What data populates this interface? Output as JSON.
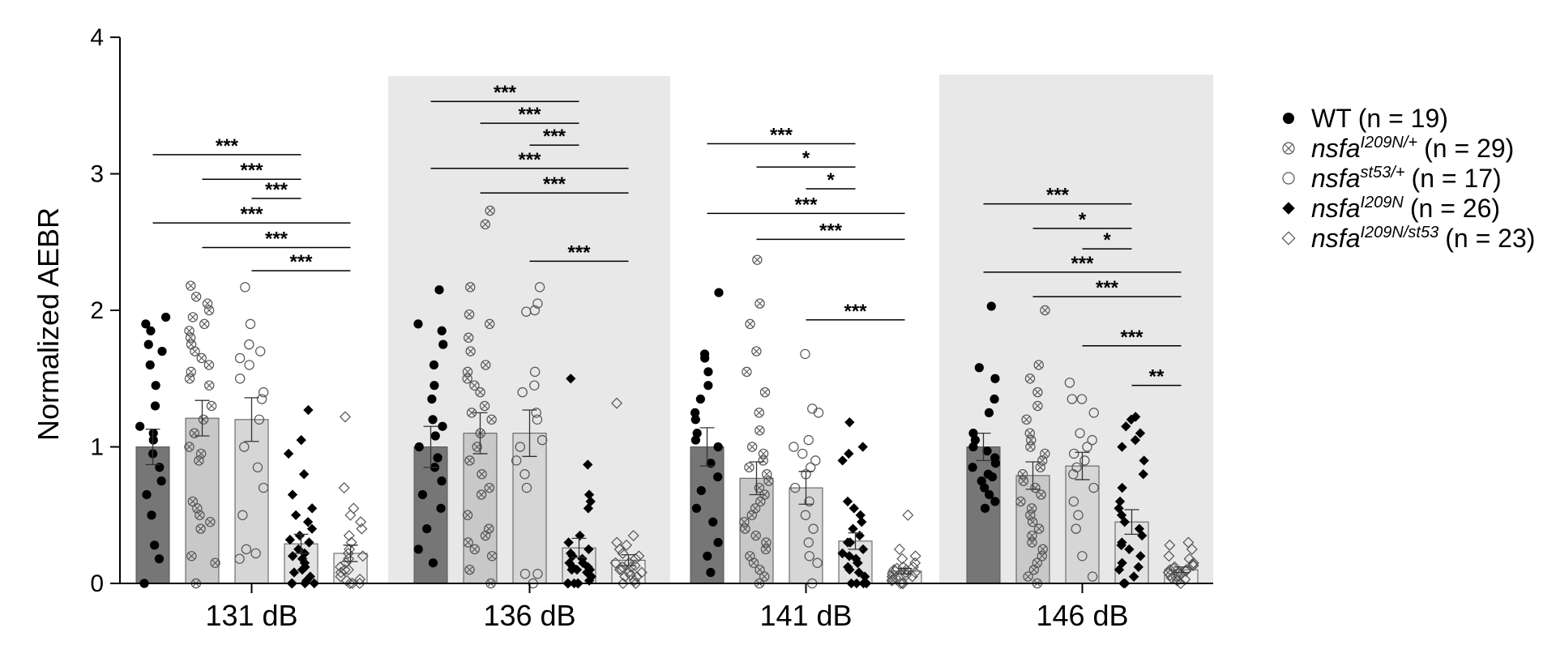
{
  "chart_data": {
    "type": "bar",
    "title": "",
    "ylabel": "Normalized AEBR",
    "xlabel": "",
    "ylim": [
      0,
      4
    ],
    "yticks": [
      0,
      1,
      2,
      3,
      4
    ],
    "categories": [
      "131 dB",
      "136 dB",
      "141 dB",
      "146 dB"
    ],
    "shaded_groups": [
      "136 dB",
      "146 dB"
    ],
    "series": [
      {
        "key": "wt",
        "name": "WT",
        "n_label": "(n = 19)",
        "marker": "circle-filled",
        "bar_color": "#767676",
        "values": [
          1.0,
          1.0,
          1.0,
          1.0
        ],
        "sem": [
          0.13,
          0.15,
          0.14,
          0.1
        ],
        "points": [
          [
            0.0,
            0.18,
            0.28,
            0.5,
            0.65,
            0.75,
            0.85,
            0.95,
            1.05,
            1.1,
            1.15,
            1.3,
            1.45,
            1.6,
            1.7,
            1.75,
            1.85,
            1.9,
            1.95
          ],
          [
            0.15,
            0.25,
            0.4,
            0.55,
            0.65,
            0.75,
            0.85,
            0.92,
            1.0,
            1.08,
            1.15,
            1.2,
            1.35,
            1.45,
            1.6,
            1.75,
            1.85,
            1.9,
            2.15
          ],
          [
            0.08,
            0.2,
            0.3,
            0.45,
            0.55,
            0.68,
            0.78,
            0.88,
            1.0,
            1.05,
            1.1,
            1.2,
            1.25,
            1.35,
            1.45,
            1.55,
            1.65,
            1.68,
            2.13
          ],
          [
            0.55,
            0.6,
            0.65,
            0.7,
            0.75,
            0.78,
            0.8,
            0.85,
            0.88,
            0.92,
            0.97,
            1.0,
            1.05,
            1.1,
            1.25,
            1.35,
            1.5,
            1.58,
            2.03
          ]
        ]
      },
      {
        "key": "het",
        "name": "nsfa",
        "sup": "I209N/+",
        "n_label": "(n = 29)",
        "marker": "circle-cross",
        "bar_color": "#c8c8c8",
        "values": [
          1.21,
          1.1,
          0.77,
          0.79
        ],
        "sem": [
          0.13,
          0.15,
          0.12,
          0.1
        ],
        "points": [
          [
            0.0,
            0.15,
            0.2,
            0.4,
            0.45,
            0.5,
            0.55,
            0.6,
            0.9,
            0.95,
            1.0,
            1.1,
            1.2,
            1.3,
            1.45,
            1.5,
            1.55,
            1.6,
            1.65,
            1.7,
            1.75,
            1.8,
            1.85,
            1.9,
            1.95,
            2.0,
            2.05,
            2.1,
            2.18
          ],
          [
            0.0,
            0.1,
            0.2,
            0.25,
            0.3,
            0.35,
            0.4,
            0.5,
            0.65,
            0.7,
            0.8,
            0.9,
            1.0,
            1.1,
            1.2,
            1.3,
            1.4,
            1.45,
            1.5,
            1.55,
            1.6,
            1.7,
            1.8,
            1.9,
            1.97,
            2.17,
            2.63,
            2.73,
            1.25
          ],
          [
            0.0,
            0.05,
            0.1,
            0.15,
            0.2,
            0.25,
            0.3,
            0.35,
            0.4,
            0.45,
            0.5,
            0.55,
            0.6,
            0.65,
            0.7,
            0.75,
            0.8,
            0.85,
            0.9,
            0.95,
            1.0,
            1.12,
            1.25,
            1.4,
            1.55,
            1.7,
            1.9,
            2.05,
            2.37
          ],
          [
            0.0,
            0.05,
            0.1,
            0.15,
            0.2,
            0.25,
            0.3,
            0.35,
            0.4,
            0.45,
            0.5,
            0.55,
            0.6,
            0.65,
            0.7,
            0.75,
            0.8,
            0.85,
            0.9,
            0.95,
            1.0,
            1.05,
            1.1,
            1.2,
            1.3,
            1.4,
            1.5,
            1.6,
            2.0
          ]
        ]
      },
      {
        "key": "st53",
        "name": "nsfa",
        "sup": "st53/+",
        "n_label": "(n = 17)",
        "marker": "circle-open",
        "bar_color": "#d6d6d6",
        "values": [
          1.2,
          1.1,
          0.7,
          0.86
        ],
        "sem": [
          0.16,
          0.17,
          0.12,
          0.1
        ],
        "points": [
          [
            0.18,
            0.22,
            0.25,
            0.5,
            0.7,
            0.85,
            1.0,
            1.2,
            1.4,
            1.5,
            1.6,
            1.65,
            1.7,
            1.75,
            1.9,
            2.17,
            1.35
          ],
          [
            0.0,
            0.07,
            0.07,
            0.7,
            0.8,
            0.9,
            1.0,
            1.05,
            1.25,
            1.4,
            1.45,
            1.55,
            1.99,
            2.0,
            2.05,
            2.17,
            1.2
          ],
          [
            0.0,
            0.15,
            0.2,
            0.3,
            0.4,
            0.5,
            0.6,
            0.7,
            0.8,
            0.9,
            0.95,
            1.0,
            1.05,
            1.25,
            1.28,
            1.68,
            0.85
          ],
          [
            0.05,
            0.2,
            0.4,
            0.5,
            0.6,
            0.7,
            0.8,
            0.85,
            0.9,
            0.95,
            1.0,
            1.05,
            1.1,
            1.25,
            1.35,
            1.47,
            1.35
          ]
        ]
      },
      {
        "key": "hom",
        "name": "nsfa",
        "sup": "I209N",
        "n_label": "(n = 26)",
        "marker": "diamond-filled",
        "bar_color": "#e2e2e2",
        "values": [
          0.29,
          0.26,
          0.31,
          0.45
        ],
        "sem": [
          0.07,
          0.07,
          0.06,
          0.09
        ],
        "points": [
          [
            0.0,
            0.0,
            0.0,
            0.0,
            0.02,
            0.05,
            0.08,
            0.1,
            0.12,
            0.15,
            0.18,
            0.2,
            0.22,
            0.25,
            0.3,
            0.32,
            0.35,
            0.4,
            0.45,
            0.5,
            0.55,
            0.65,
            0.8,
            0.95,
            1.05,
            1.27
          ],
          [
            0.0,
            0.0,
            0.0,
            0.0,
            0.0,
            0.02,
            0.05,
            0.08,
            0.1,
            0.1,
            0.12,
            0.12,
            0.15,
            0.15,
            0.18,
            0.2,
            0.22,
            0.25,
            0.3,
            0.35,
            0.55,
            0.6,
            0.65,
            0.87,
            1.5,
            0.1
          ],
          [
            0.0,
            0.0,
            0.0,
            0.0,
            0.05,
            0.08,
            0.1,
            0.12,
            0.15,
            0.18,
            0.2,
            0.22,
            0.25,
            0.3,
            0.35,
            0.4,
            0.45,
            0.5,
            0.55,
            0.6,
            0.9,
            0.95,
            1.0,
            1.18,
            0.15,
            0.3
          ],
          [
            0.0,
            0.0,
            0.05,
            0.1,
            0.15,
            0.2,
            0.25,
            0.3,
            0.35,
            0.4,
            0.45,
            0.5,
            0.55,
            0.6,
            0.7,
            0.8,
            0.9,
            1.0,
            1.05,
            1.1,
            1.15,
            1.2,
            1.22,
            0.28,
            0.12,
            0.05
          ]
        ]
      },
      {
        "key": "trans",
        "name": "nsfa",
        "sup": "I209N/st53",
        "n_label": "(n = 23)",
        "marker": "diamond-open",
        "bar_color": "#ececec",
        "values": [
          0.22,
          0.17,
          0.09,
          0.1
        ],
        "sem": [
          0.06,
          0.04,
          0.02,
          0.02
        ],
        "points": [
          [
            0.0,
            0.0,
            0.0,
            0.02,
            0.05,
            0.08,
            0.1,
            0.12,
            0.15,
            0.18,
            0.2,
            0.22,
            0.25,
            0.3,
            0.35,
            0.4,
            0.45,
            0.5,
            0.55,
            0.7,
            1.22,
            0.1,
            0.03
          ],
          [
            0.0,
            0.02,
            0.05,
            0.05,
            0.08,
            0.1,
            0.1,
            0.12,
            0.12,
            0.15,
            0.15,
            0.18,
            0.2,
            0.22,
            0.25,
            0.28,
            0.3,
            0.35,
            1.32,
            0.08,
            0.13,
            0.06,
            0.0
          ],
          [
            0.0,
            0.0,
            0.02,
            0.03,
            0.05,
            0.05,
            0.06,
            0.07,
            0.08,
            0.08,
            0.1,
            0.1,
            0.12,
            0.12,
            0.15,
            0.18,
            0.2,
            0.25,
            0.5,
            0.04,
            0.09,
            0.11,
            0.0
          ],
          [
            0.0,
            0.02,
            0.03,
            0.05,
            0.05,
            0.06,
            0.07,
            0.08,
            0.09,
            0.1,
            0.1,
            0.11,
            0.12,
            0.13,
            0.14,
            0.15,
            0.18,
            0.2,
            0.25,
            0.28,
            0.3,
            0.04,
            0.08
          ]
        ]
      }
    ],
    "significance": [
      [
        {
          "from": 0,
          "to": 3,
          "label": "***",
          "y": 3.14
        },
        {
          "from": 1,
          "to": 3,
          "label": "***",
          "y": 2.96
        },
        {
          "from": 2,
          "to": 3,
          "label": "***",
          "y": 2.82
        },
        {
          "from": 0,
          "to": 4,
          "label": "***",
          "y": 2.64
        },
        {
          "from": 1,
          "to": 4,
          "label": "***",
          "y": 2.46
        },
        {
          "from": 2,
          "to": 4,
          "label": "***",
          "y": 2.29
        }
      ],
      [
        {
          "from": 0,
          "to": 3,
          "label": "***",
          "y": 3.53
        },
        {
          "from": 1,
          "to": 3,
          "label": "***",
          "y": 3.37
        },
        {
          "from": 2,
          "to": 3,
          "label": "***",
          "y": 3.21
        },
        {
          "from": 0,
          "to": 4,
          "label": "***",
          "y": 3.04
        },
        {
          "from": 1,
          "to": 4,
          "label": "***",
          "y": 2.86
        },
        {
          "from": 2,
          "to": 4,
          "label": "***",
          "y": 2.36
        }
      ],
      [
        {
          "from": 0,
          "to": 3,
          "label": "***",
          "y": 3.22
        },
        {
          "from": 1,
          "to": 3,
          "label": "*",
          "y": 3.05
        },
        {
          "from": 2,
          "to": 3,
          "label": "*",
          "y": 2.89
        },
        {
          "from": 0,
          "to": 4,
          "label": "***",
          "y": 2.71
        },
        {
          "from": 1,
          "to": 4,
          "label": "***",
          "y": 2.52
        },
        {
          "from": 2,
          "to": 4,
          "label": "***",
          "y": 1.93
        }
      ],
      [
        {
          "from": 0,
          "to": 3,
          "label": "***",
          "y": 2.78
        },
        {
          "from": 1,
          "to": 3,
          "label": "*",
          "y": 2.6
        },
        {
          "from": 2,
          "to": 3,
          "label": "*",
          "y": 2.45
        },
        {
          "from": 0,
          "to": 4,
          "label": "***",
          "y": 2.28
        },
        {
          "from": 1,
          "to": 4,
          "label": "***",
          "y": 2.1
        },
        {
          "from": 2,
          "to": 4,
          "label": "***",
          "y": 1.74
        },
        {
          "from": 3,
          "to": 4,
          "label": "**",
          "y": 1.45
        }
      ]
    ],
    "legend": {
      "position": "right"
    }
  }
}
